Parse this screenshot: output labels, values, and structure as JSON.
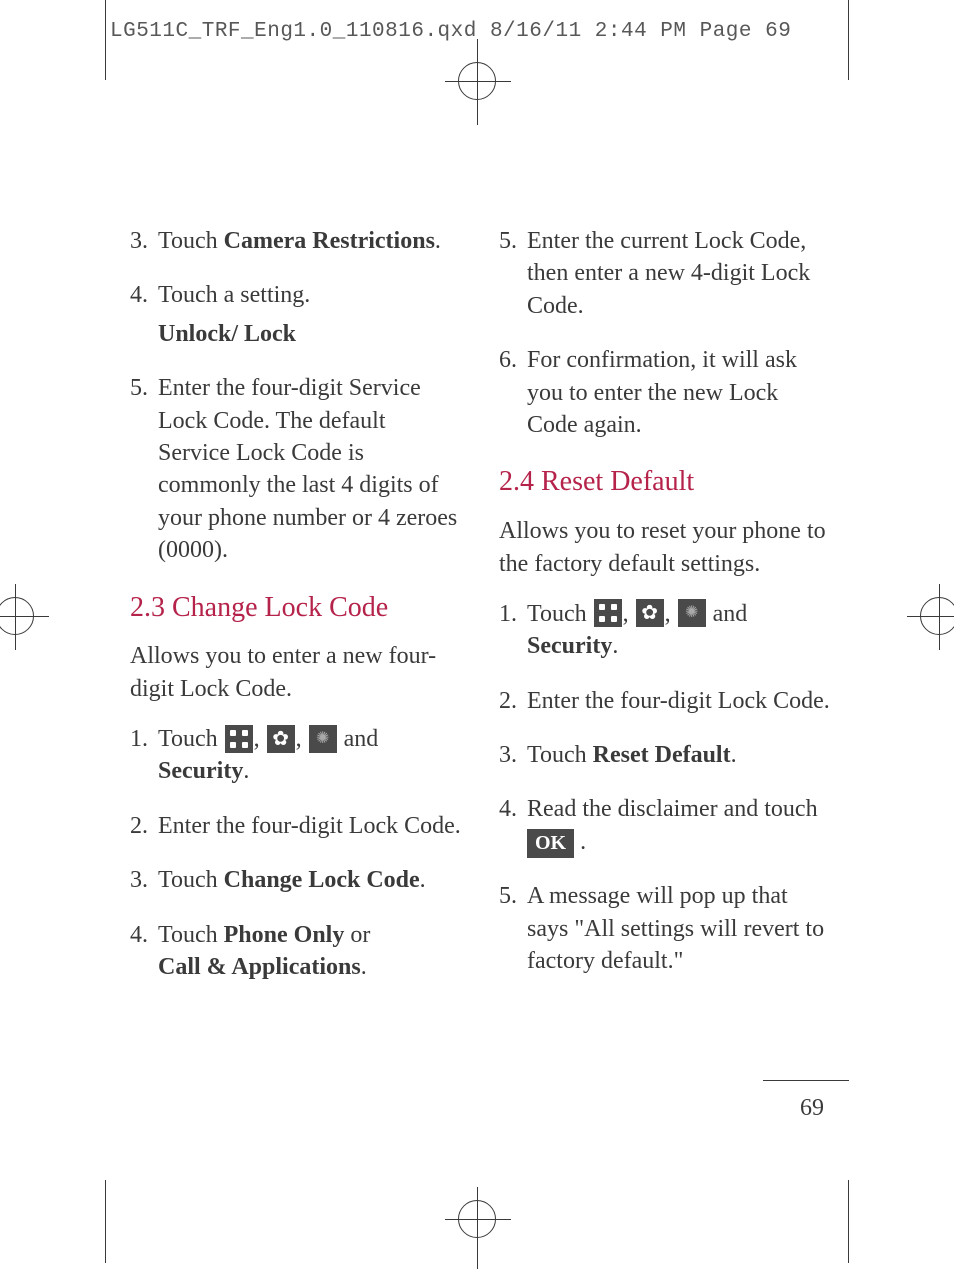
{
  "crop_header": "LG511C_TRF_Eng1.0_110816.qxd  8/16/11  2:44 PM  Page 69",
  "page_number": "69",
  "colors": {
    "heading": "#b5224a",
    "body": "#3a3a3a",
    "icon_bg": "#4a4a4a"
  },
  "left": {
    "item3_pre": "Touch ",
    "item3_bold": "Camera Restrictions",
    "item3_post": ".",
    "item4": "Touch a setting.",
    "item4_sub": "Unlock/ Lock",
    "item5": "Enter the four-digit Service Lock Code. The default Service Lock Code is commonly the last 4 digits of your phone number or 4 zeroes (0000).",
    "sec23_title": "2.3 Change Lock Code",
    "sec23_intro": "Allows you to enter a new four-digit Lock Code.",
    "s23_i1_pre": "Touch ",
    "s23_i1_mid": " and",
    "s23_i1_bold": "Security",
    "s23_i1_post": ".",
    "s23_i2": "Enter the four-digit Lock Code.",
    "s23_i3_pre": "Touch ",
    "s23_i3_bold": "Change Lock Code",
    "s23_i3_post": ".",
    "s23_i4_pre": "Touch ",
    "s23_i4_b1": "Phone Only",
    "s23_i4_mid": " or",
    "s23_i4_b2": "Call & Applications",
    "s23_i4_post": "."
  },
  "right": {
    "i5": "Enter the current Lock Code, then enter a new 4-digit Lock Code.",
    "i6": "For confirmation, it will ask you to enter the new Lock Code again.",
    "sec24_title": "2.4 Reset Default",
    "sec24_intro": "Allows you to reset your phone to the factory default settings.",
    "s24_i1_pre": "Touch ",
    "s24_i1_mid": " and",
    "s24_i1_bold": "Security",
    "s24_i1_post": ".",
    "s24_i2": "Enter the four-digit Lock Code.",
    "s24_i3_pre": "Touch ",
    "s24_i3_bold": "Reset Default",
    "s24_i3_post": ".",
    "s24_i4_pre": "Read the disclaimer and touch ",
    "s24_i4_ok": "OK",
    "s24_i4_post": " .",
    "s24_i5": "A message will pop up that says \"All settings will revert to factory default.\""
  }
}
